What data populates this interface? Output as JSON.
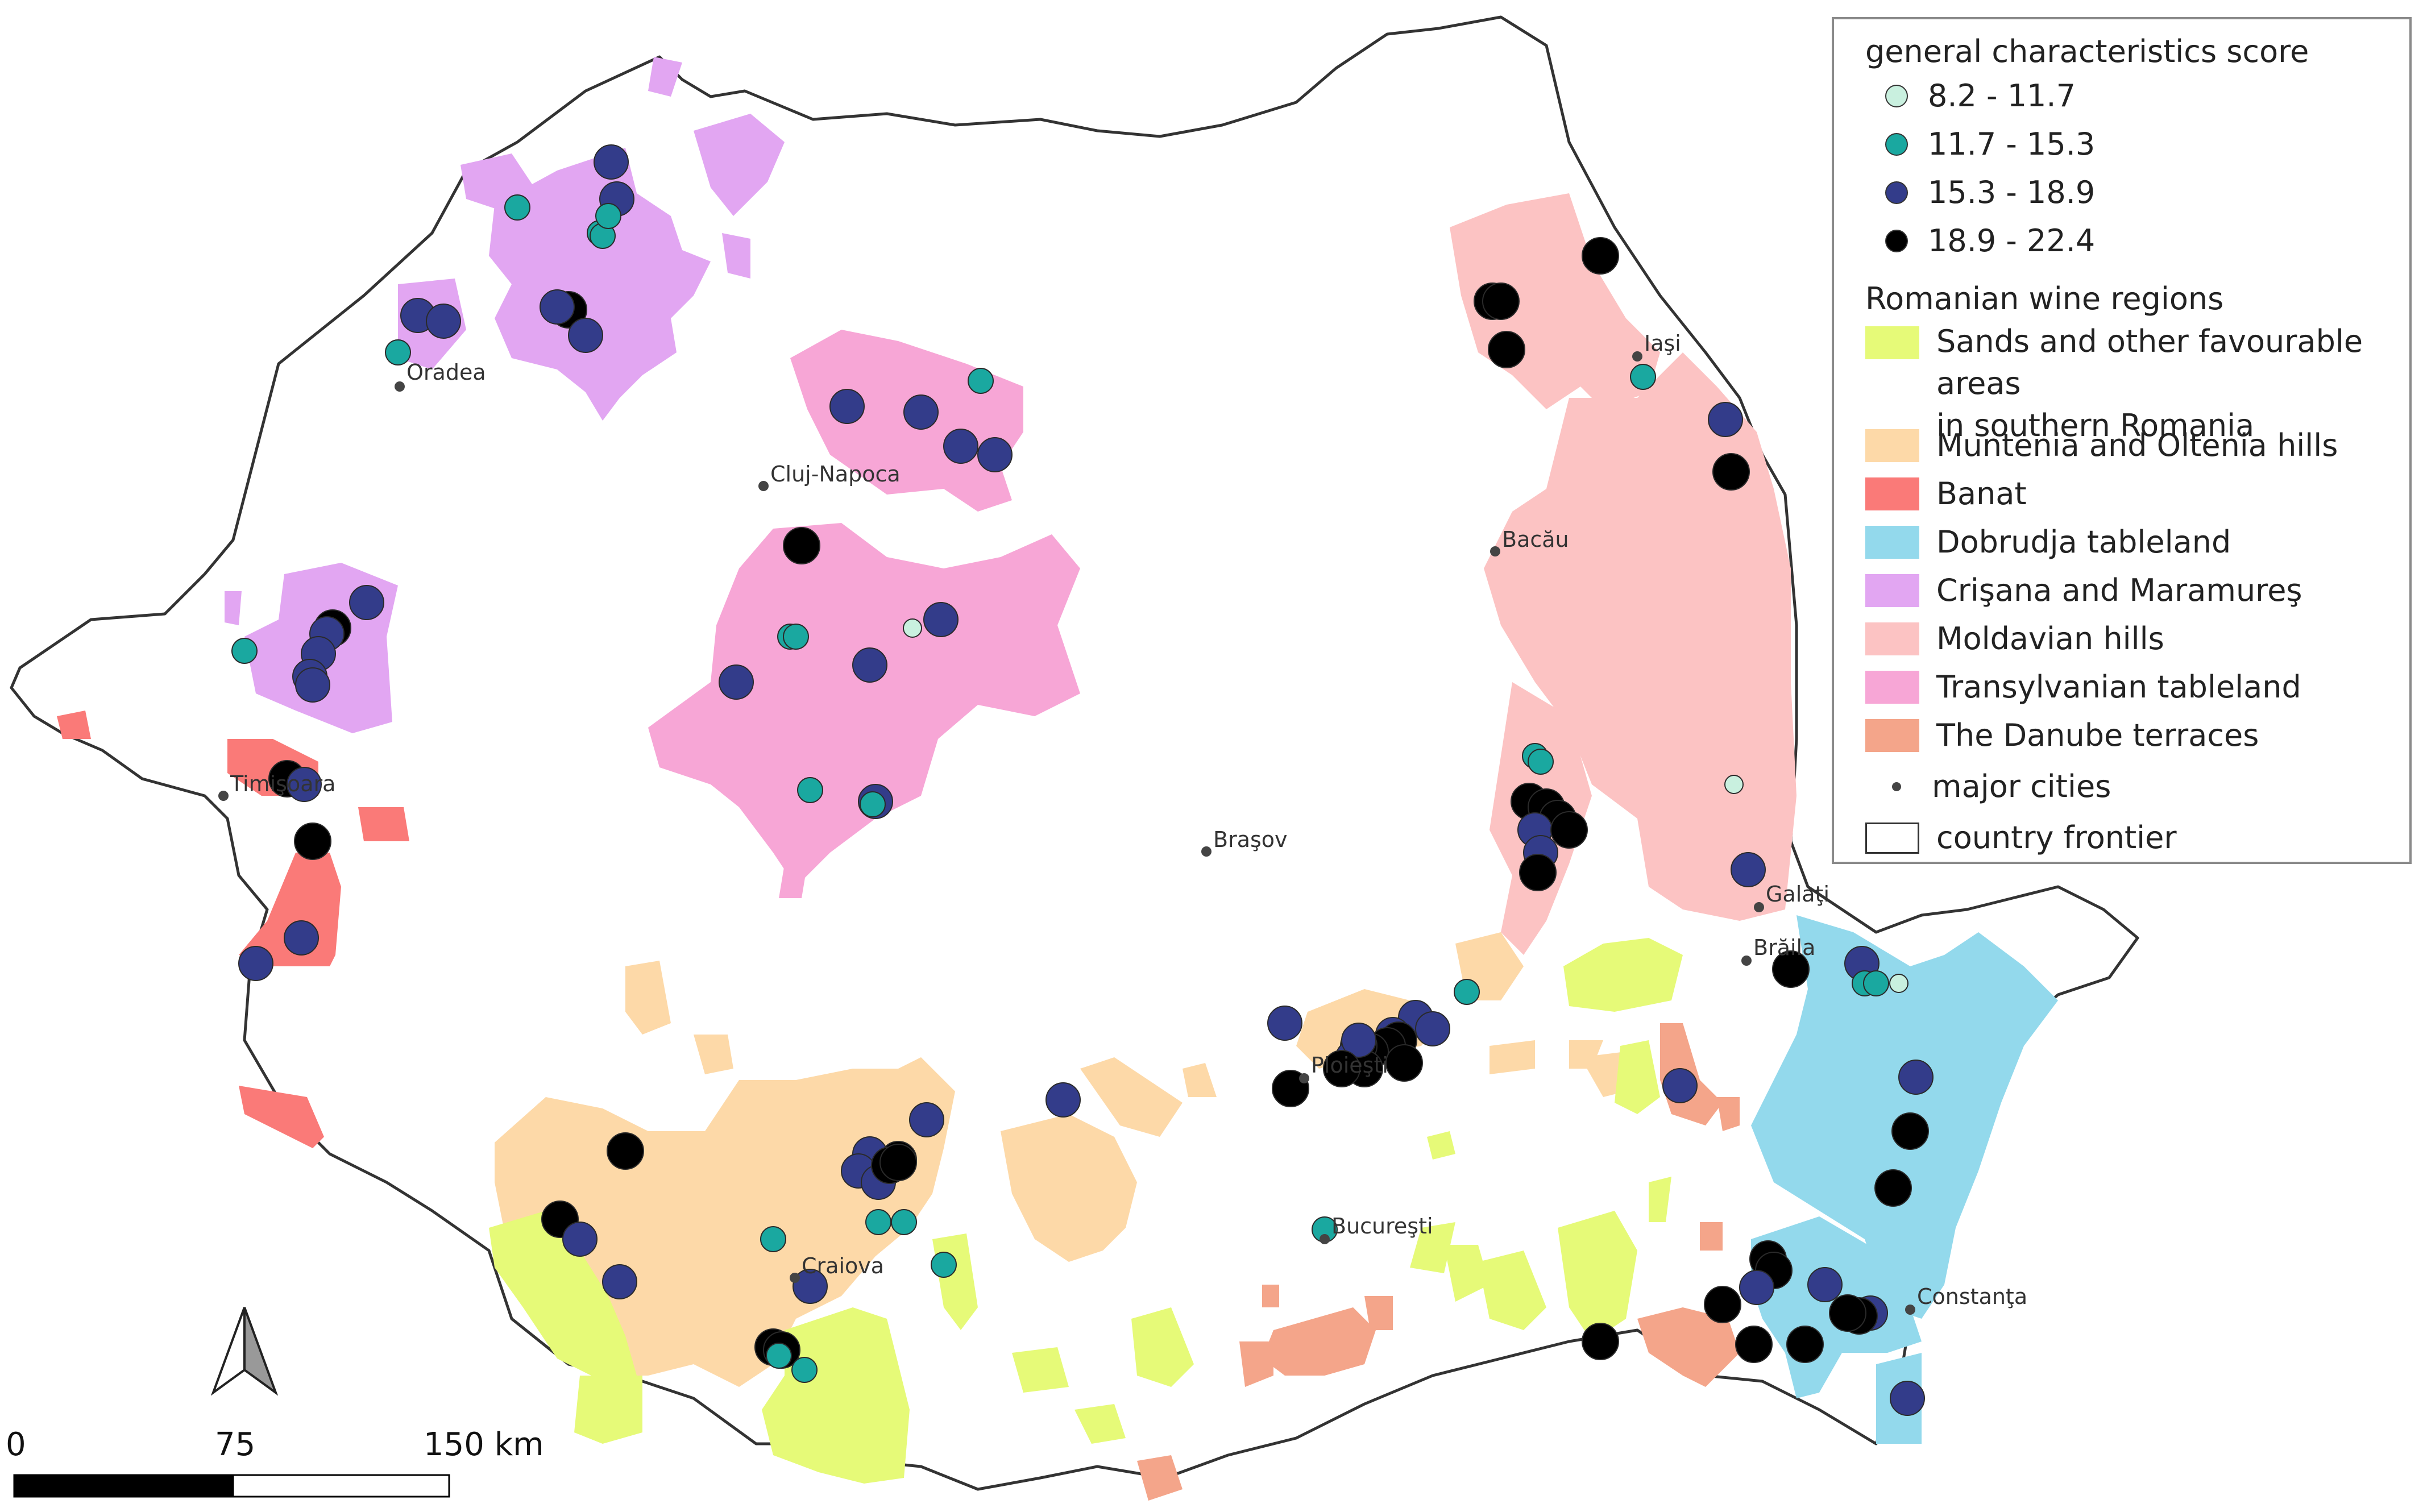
{
  "legend": {
    "score_title": "general characteristics  score",
    "score_classes": [
      {
        "label": "8.2 - 11.7",
        "color": "#c9f0df"
      },
      {
        "label": "11.7 - 15.3",
        "color": "#1aa8a0"
      },
      {
        "label": "15.3 - 18.9",
        "color": "#333c8a"
      },
      {
        "label": "18.9 - 22.4",
        "color": "#000000"
      }
    ],
    "regions_title": "Romanian wine regions",
    "regions": [
      {
        "label": "Sands and other favourable areas\nin southern Romania",
        "color": "#e6fa78"
      },
      {
        "label": "Muntenia and Oltenia hills",
        "color": "#fdd9a8"
      },
      {
        "label": "Banat",
        "color": "#fa7a78"
      },
      {
        "label": "Dobrudja tableland",
        "color": "#93d9ec"
      },
      {
        "label": "Crişana and Maramureş",
        "color": "#e2a6f2"
      },
      {
        "label": "Moldavian hills",
        "color": "#fcc3c3"
      },
      {
        "label": "Transylvanian tableland",
        "color": "#f7a6d6"
      },
      {
        "label": "The Danube terraces",
        "color": "#f4a58a"
      }
    ],
    "cities_label": "major cities",
    "frontier_label": "country frontier"
  },
  "cities": [
    {
      "name": "Oradea"
    },
    {
      "name": "Cluj-Napoca"
    },
    {
      "name": "Iaşi"
    },
    {
      "name": "Bacău"
    },
    {
      "name": "Timişoara"
    },
    {
      "name": "Braşov"
    },
    {
      "name": "Galaţi"
    },
    {
      "name": "Brăila"
    },
    {
      "name": "Ploieşti"
    },
    {
      "name": "Bucureşti"
    },
    {
      "name": "Craiova"
    },
    {
      "name": "Constanţa"
    }
  ],
  "scale_bar": {
    "labels": [
      "0",
      "75",
      "150 km"
    ]
  },
  "north_arrow": {
    "icon": "north-arrow-icon"
  }
}
